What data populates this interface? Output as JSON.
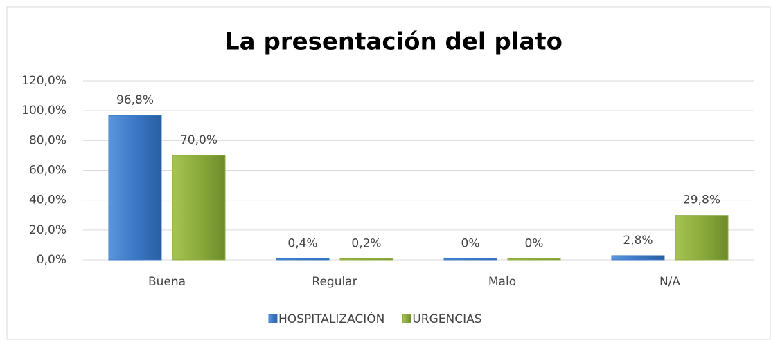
{
  "chart_data": {
    "type": "bar",
    "title": "La presentación del plato",
    "categories": [
      "Buena",
      "Regular",
      "Malo",
      "N/A"
    ],
    "series": [
      {
        "name": "HOSPITALIZACIÓN",
        "color": "#3b78c6",
        "values": [
          96.8,
          0.4,
          0,
          2.8
        ],
        "value_labels": [
          "96,8%",
          "0,4%",
          "0%",
          "2,8%"
        ]
      },
      {
        "name": "URGENCIAS",
        "color": "#8cab3c",
        "values": [
          70.0,
          0.2,
          0,
          29.8
        ],
        "value_labels": [
          "70,0%",
          "0,2%",
          "0%",
          "29,8%"
        ]
      }
    ],
    "ylim": [
      0,
      120
    ],
    "yticks": [
      {
        "value": 0,
        "label": "0,0%"
      },
      {
        "value": 20,
        "label": "20,0%"
      },
      {
        "value": 40,
        "label": "40,0%"
      },
      {
        "value": 60,
        "label": "60,0%"
      },
      {
        "value": 80,
        "label": "80,0%"
      },
      {
        "value": 100,
        "label": "100,0%"
      },
      {
        "value": 120,
        "label": "120,0%"
      }
    ],
    "grid": true,
    "legend": "bottom"
  }
}
